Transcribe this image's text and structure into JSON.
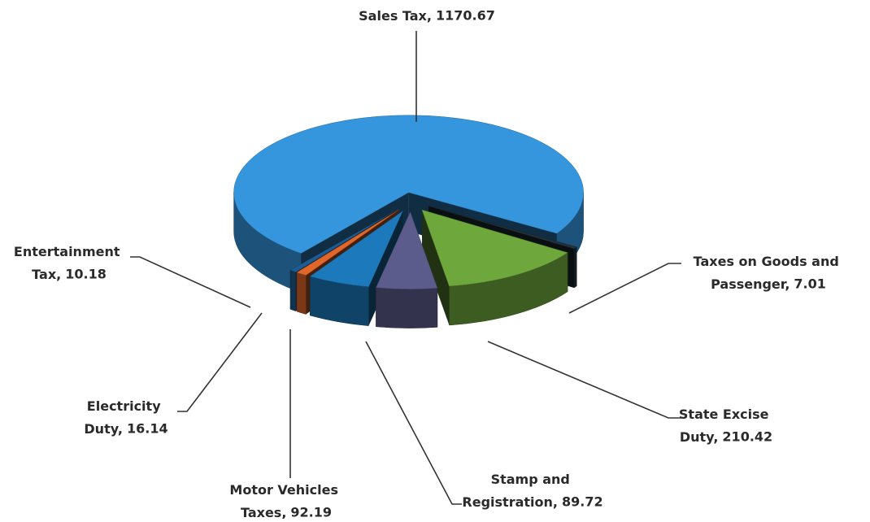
{
  "chart_data": {
    "type": "pie3d",
    "categories": [
      "Sales Tax,",
      "Taxes on Goods and Passenger,",
      "State Excise Duty,",
      "Stamp and Registration,",
      "Motor Vehicles Taxes,",
      "Electricity Duty,",
      "Entertainment Tax,"
    ],
    "values": [
      1170.67,
      7.01,
      210.42,
      89.72,
      92.19,
      16.14,
      10.18
    ],
    "colors": [
      "#3596de",
      "#22323a",
      "#6ea83c",
      "#5c5c8c",
      "#1c7abc",
      "#e0662a",
      "#1d5c92"
    ]
  }
}
